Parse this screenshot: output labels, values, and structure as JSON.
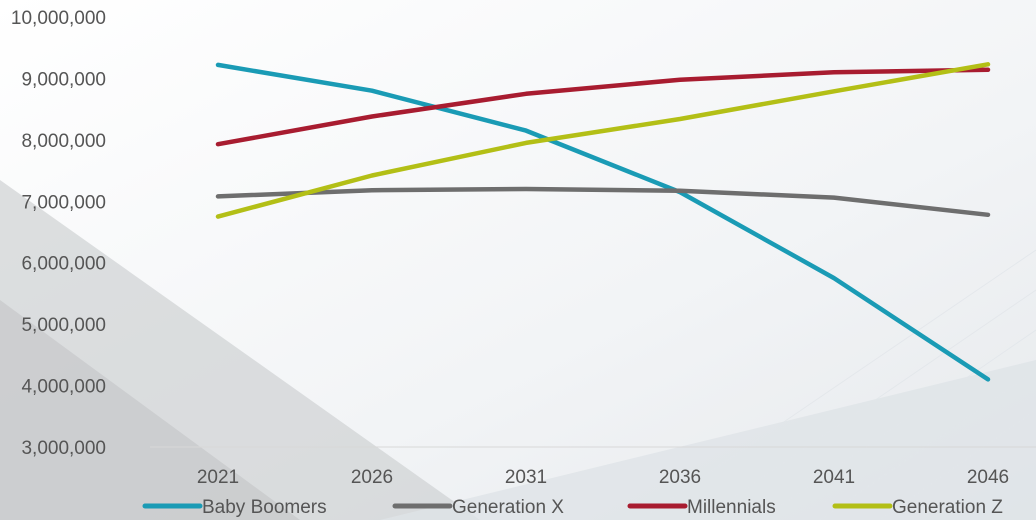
{
  "chart_data": {
    "type": "line",
    "title": "",
    "xlabel": "",
    "ylabel": "",
    "categories": [
      "2021",
      "2026",
      "2031",
      "2036",
      "2041",
      "2046"
    ],
    "ylim": [
      3000000,
      10000000
    ],
    "y_ticks": [
      3000000,
      4000000,
      5000000,
      6000000,
      7000000,
      8000000,
      9000000,
      10000000
    ],
    "y_tick_labels": [
      "3,000,000",
      "4,000,000",
      "5,000,000",
      "6,000,000",
      "7,000,000",
      "8,000,000",
      "9,000,000",
      "10,000,000"
    ],
    "grid": false,
    "legend_position": "bottom",
    "series": [
      {
        "name": "Baby Boomers",
        "color": "#1a9bb5",
        "values": [
          9220000,
          8800000,
          8150000,
          7150000,
          5750000,
          4100000
        ]
      },
      {
        "name": "Generation X",
        "color": "#6e6e6e",
        "values": [
          7080000,
          7180000,
          7200000,
          7170000,
          7060000,
          6780000
        ]
      },
      {
        "name": "Millennials",
        "color": "#a81c30",
        "values": [
          7930000,
          8380000,
          8750000,
          8980000,
          9100000,
          9140000
        ]
      },
      {
        "name": "Generation Z",
        "color": "#b3bf16",
        "values": [
          6750000,
          7420000,
          7950000,
          8340000,
          8790000,
          9230000
        ]
      }
    ]
  }
}
